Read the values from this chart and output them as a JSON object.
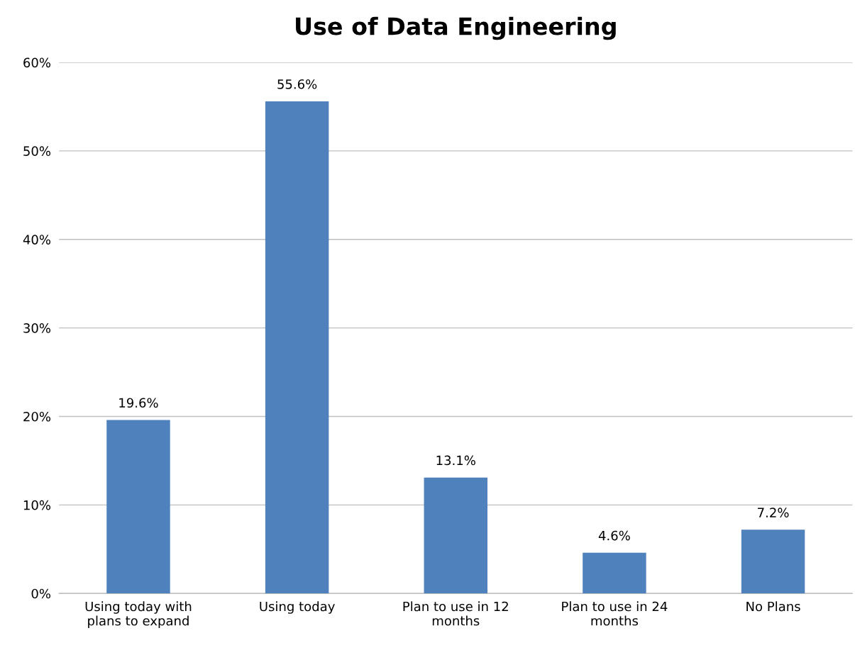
{
  "chart_data": {
    "type": "bar",
    "title": "Use of Data Engineering",
    "categories": [
      "Using today with\nplans to expand",
      "Using today",
      "Plan to use in 12\nmonths",
      "Plan to use in 24\nmonths",
      "No Plans"
    ],
    "values": [
      19.6,
      55.6,
      13.1,
      4.6,
      7.2
    ],
    "value_labels": [
      "19.6%",
      "55.6%",
      "13.1%",
      "4.6%",
      "7.2%"
    ],
    "color": "#4f81bd",
    "ylim": [
      0,
      60
    ],
    "yticks": [
      {
        "value": 0,
        "label": "0%"
      },
      {
        "value": 10,
        "label": "10%"
      },
      {
        "value": 20,
        "label": "20%"
      },
      {
        "value": 30,
        "label": "30%"
      },
      {
        "value": 40,
        "label": "40%"
      },
      {
        "value": 50,
        "label": "50%"
      },
      {
        "value": 60,
        "label": "60%"
      }
    ],
    "grid": "y",
    "legend": false
  }
}
